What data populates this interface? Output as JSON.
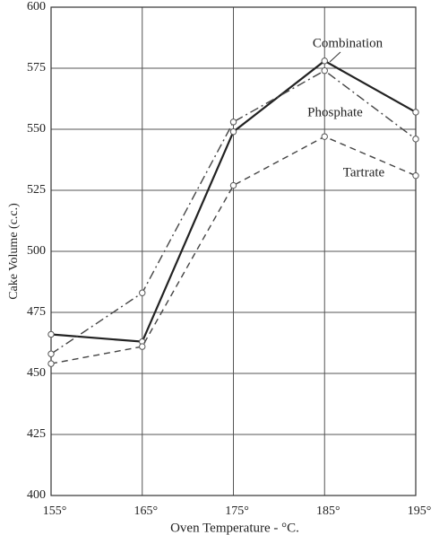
{
  "chart_data": {
    "type": "line",
    "xlabel": "Oven Temperature - °C.",
    "ylabel": "Cake Volume (c.c.)",
    "x": [
      155,
      165,
      175,
      185,
      195
    ],
    "series": [
      {
        "name": "Combination",
        "color": "#222222",
        "style": "solid",
        "values": [
          466,
          463,
          549,
          578,
          557
        ]
      },
      {
        "name": "Phosphate",
        "color": "#444444",
        "style": "dash-dot",
        "values": [
          458,
          483,
          553,
          574,
          546
        ]
      },
      {
        "name": "Tartrate",
        "color": "#444444",
        "style": "dash",
        "values": [
          454,
          461,
          527,
          547,
          531
        ]
      }
    ],
    "xlim": [
      155,
      195
    ],
    "xticks": [
      {
        "value": 155,
        "label": "155°"
      },
      {
        "value": 165,
        "label": "165°"
      },
      {
        "value": 175,
        "label": "175°"
      },
      {
        "value": 185,
        "label": "185°"
      },
      {
        "value": 195,
        "label": "195°"
      }
    ],
    "ylim": [
      400,
      600
    ],
    "yticks": [
      400,
      425,
      450,
      475,
      500,
      525,
      550,
      575,
      600
    ],
    "grid": true
  }
}
